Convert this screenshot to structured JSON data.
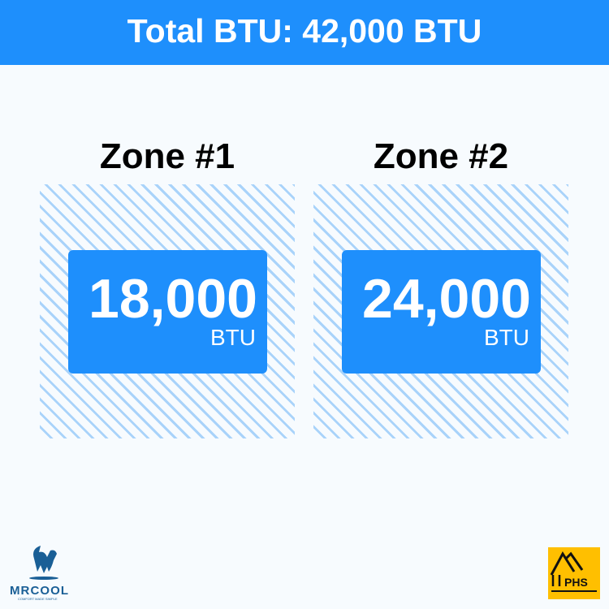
{
  "header": {
    "title": "Total BTU: 42,000 BTU"
  },
  "zones": [
    {
      "title": "Zone #1",
      "value": "18,000",
      "unit": "BTU"
    },
    {
      "title": "Zone #2",
      "value": "24,000",
      "unit": "BTU"
    }
  ],
  "logos": {
    "mrcool": "MRCOOL",
    "mrcool_tagline": "COMFORT MADE SIMPLE",
    "phs": "PHS"
  },
  "colors": {
    "accent": "#1e8ffc",
    "hatch": "#a9d3fa",
    "phs_bg": "#ffbf00",
    "mrcool_blue": "#1a5f96"
  }
}
